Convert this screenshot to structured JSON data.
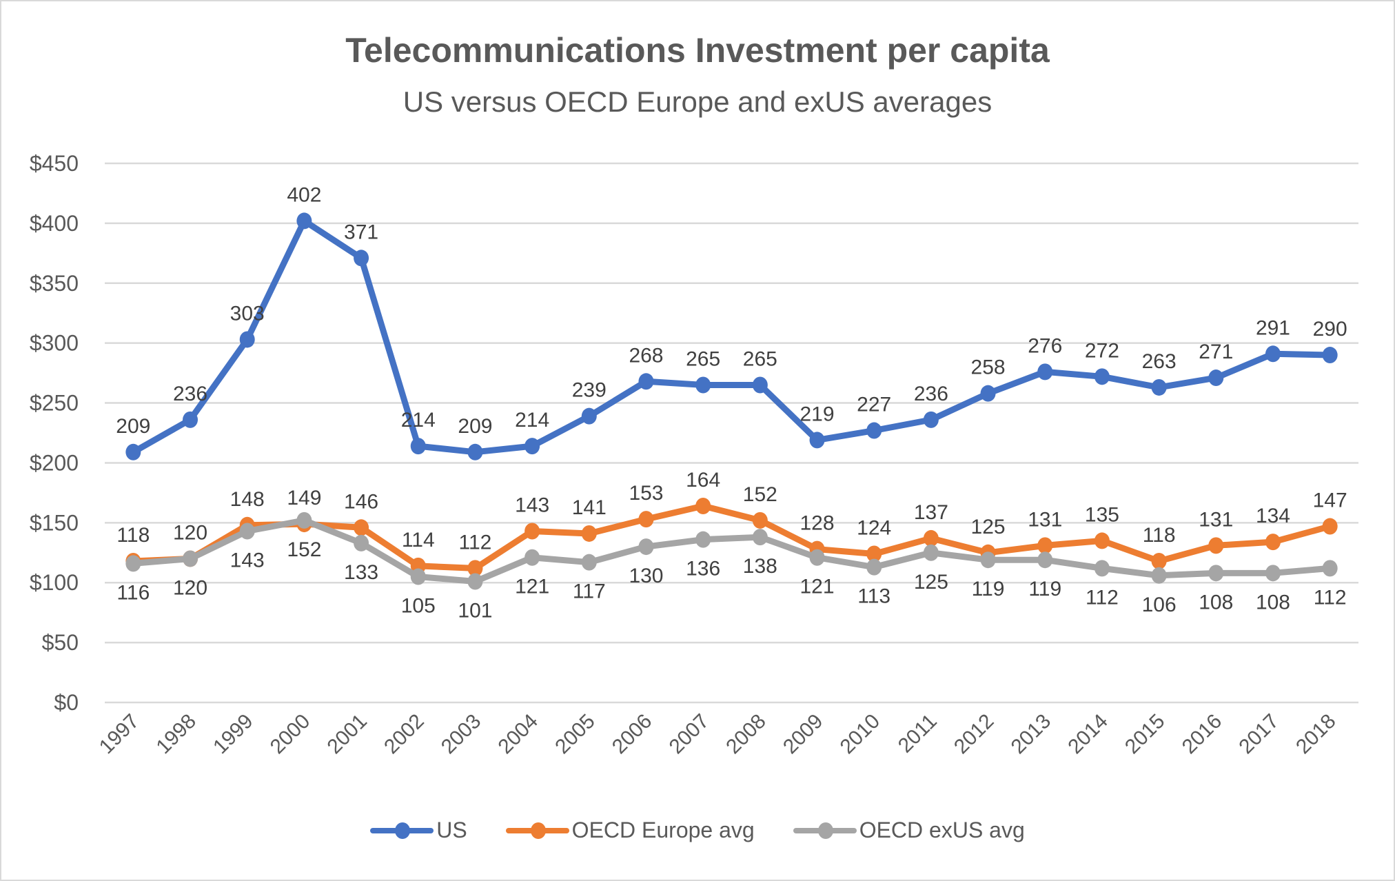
{
  "chart_data": {
    "type": "line",
    "title": "Telecommunications Investment per capita",
    "subtitle": "US versus OECD Europe and exUS averages",
    "xlabel": "",
    "ylabel": "",
    "ylim": [
      0,
      450
    ],
    "y_ticks": [
      0,
      50,
      100,
      150,
      200,
      250,
      300,
      350,
      400,
      450
    ],
    "y_tick_labels": [
      "$0",
      "$50",
      "$100",
      "$150",
      "$200",
      "$250",
      "$300",
      "$350",
      "$400",
      "$450"
    ],
    "grid": true,
    "legend_position": "bottom",
    "categories": [
      "1997",
      "1998",
      "1999",
      "2000",
      "2001",
      "2002",
      "2003",
      "2004",
      "2005",
      "2006",
      "2007",
      "2008",
      "2009",
      "2010",
      "2011",
      "2012",
      "2013",
      "2014",
      "2015",
      "2016",
      "2017",
      "2018"
    ],
    "series": [
      {
        "name": "US",
        "color": "#4472C4",
        "label_position": "above",
        "values": [
          209,
          236,
          303,
          402,
          371,
          214,
          209,
          214,
          239,
          268,
          265,
          265,
          219,
          227,
          236,
          258,
          276,
          272,
          263,
          271,
          291,
          290
        ]
      },
      {
        "name": "OECD Europe avg",
        "color": "#ED7D31",
        "label_position": "above",
        "values": [
          118,
          120,
          148,
          149,
          146,
          114,
          112,
          143,
          141,
          153,
          164,
          152,
          128,
          124,
          137,
          125,
          131,
          135,
          118,
          131,
          134,
          147
        ]
      },
      {
        "name": "OECD exUS avg",
        "color": "#A5A5A5",
        "label_position": "below",
        "values": [
          116,
          120,
          143,
          152,
          133,
          105,
          101,
          121,
          117,
          130,
          136,
          138,
          121,
          113,
          125,
          119,
          119,
          112,
          106,
          108,
          108,
          112
        ]
      }
    ]
  }
}
